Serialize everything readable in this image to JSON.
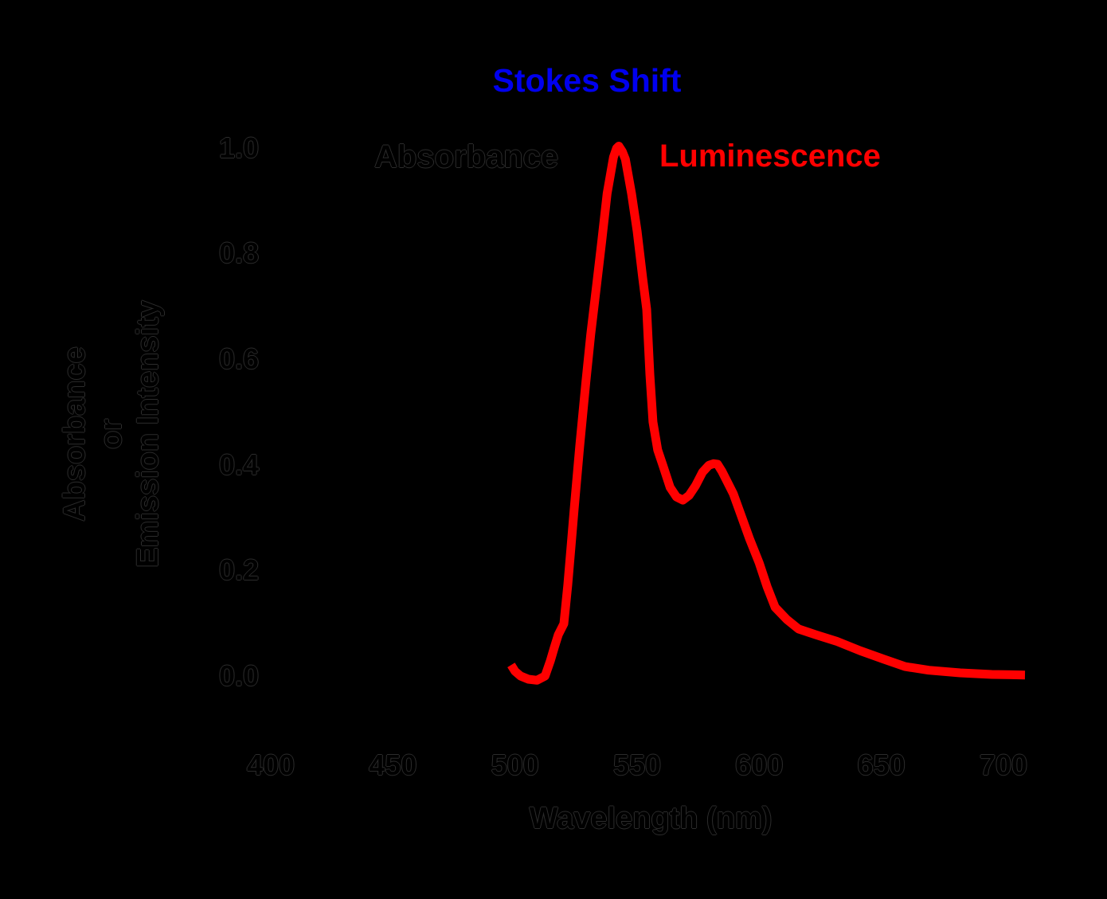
{
  "figure": {
    "background_color": "#000000",
    "title_color": "#0000ee",
    "curve_color": "#ff0000",
    "hidden_text_color": "#000000"
  },
  "chart_data": {
    "type": "line",
    "title": "Stokes Shift",
    "xlabel": "Wavelength (nm)",
    "ylabel": "Absorbance or Emission Intensity",
    "ylabel_lines": [
      "Absorbance",
      "or",
      "Emission Intensity"
    ],
    "x_ticks": [
      400,
      450,
      500,
      550,
      600,
      650,
      700
    ],
    "y_ticks": [
      0.0,
      0.2,
      0.4,
      0.6,
      0.8,
      1.0
    ],
    "xlim": [
      380,
      715
    ],
    "ylim": [
      -0.05,
      1.08
    ],
    "grid": false,
    "legend_position": "none",
    "annotations": [
      {
        "text": "Absorbance",
        "color": "#000000",
        "note": "black text, nearly invisible on black background"
      },
      {
        "text": "Luminescence",
        "color": "#ff0000"
      }
    ],
    "series": [
      {
        "name": "Luminescence",
        "color": "#ff0000",
        "peak_nm": 542.5,
        "peak_value": 1.0,
        "shoulder_nm": 583,
        "shoulder_value": 0.4,
        "x": [
          498.4,
          500.0,
          502.3,
          505.5,
          509.0,
          512.3,
          514.5,
          516.1,
          517.7,
          520.0,
          521.6,
          522.9,
          524.2,
          526.5,
          529.0,
          531.0,
          533.2,
          535.5,
          537.7,
          540.3,
          541.6,
          542.5,
          543.9,
          545.2,
          547.7,
          550.0,
          552.3,
          553.9,
          555.2,
          556.5,
          558.4,
          560.6,
          563.5,
          566.1,
          568.7,
          571.3,
          573.9,
          576.8,
          579.4,
          581.3,
          582.9,
          584.8,
          587.1,
          589.4,
          592.6,
          596.1,
          600.0,
          603.2,
          606.5,
          611.3,
          616.1,
          623.2,
          631.6,
          641.3,
          651.0,
          659.7,
          669.4,
          682.3,
          695.2,
          708.8
        ],
        "y": [
          0.021,
          0.009,
          0.0,
          -0.006,
          -0.008,
          0.0,
          0.029,
          0.054,
          0.078,
          0.099,
          0.172,
          0.243,
          0.315,
          0.435,
          0.556,
          0.646,
          0.732,
          0.822,
          0.913,
          0.982,
          0.999,
          1.003,
          0.993,
          0.978,
          0.913,
          0.842,
          0.752,
          0.694,
          0.571,
          0.481,
          0.428,
          0.398,
          0.357,
          0.339,
          0.333,
          0.342,
          0.36,
          0.386,
          0.399,
          0.402,
          0.401,
          0.387,
          0.366,
          0.345,
          0.304,
          0.259,
          0.214,
          0.169,
          0.13,
          0.107,
          0.089,
          0.078,
          0.066,
          0.048,
          0.032,
          0.018,
          0.011,
          0.006,
          0.003,
          0.002
        ]
      },
      {
        "name": "Absorbance",
        "color": "#000000",
        "visible_in_image": false,
        "x": [],
        "y": []
      }
    ]
  }
}
